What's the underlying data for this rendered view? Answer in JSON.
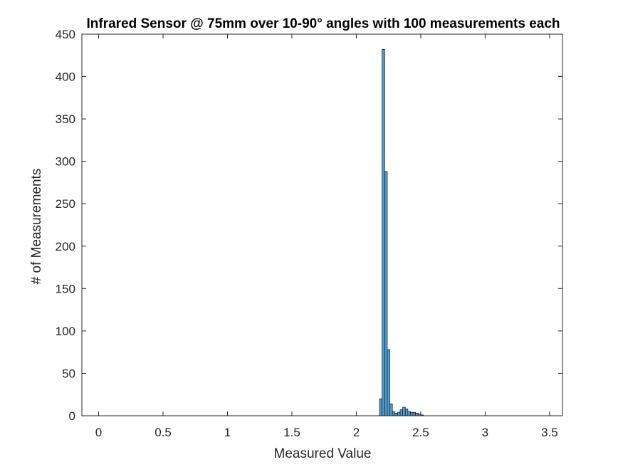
{
  "chart_data": {
    "type": "bar",
    "title": "Infrared Sensor @ 75mm over 10-90° angles with 100 measurements each",
    "xlabel": "Measured Value",
    "ylabel": "# of Measurements",
    "xlim": [
      -0.13,
      3.6
    ],
    "ylim": [
      0,
      450
    ],
    "xticks": [
      0,
      0.5,
      1,
      1.5,
      2,
      2.5,
      3,
      3.5
    ],
    "yticks": [
      0,
      50,
      100,
      150,
      200,
      250,
      300,
      350,
      400,
      450
    ],
    "grid": false,
    "bin_range": [
      0,
      3.5
    ],
    "bin_width": 0.02,
    "bins": [
      {
        "x": 2.18,
        "count": 20
      },
      {
        "x": 2.2,
        "count": 432
      },
      {
        "x": 2.22,
        "count": 288
      },
      {
        "x": 2.24,
        "count": 78
      },
      {
        "x": 2.26,
        "count": 14
      },
      {
        "x": 2.28,
        "count": 5
      },
      {
        "x": 2.3,
        "count": 3
      },
      {
        "x": 2.32,
        "count": 4
      },
      {
        "x": 2.34,
        "count": 7
      },
      {
        "x": 2.36,
        "count": 10
      },
      {
        "x": 2.38,
        "count": 8
      },
      {
        "x": 2.4,
        "count": 5
      },
      {
        "x": 2.42,
        "count": 4
      },
      {
        "x": 2.44,
        "count": 4
      },
      {
        "x": 2.46,
        "count": 3
      },
      {
        "x": 2.48,
        "count": 2
      },
      {
        "x": 2.5,
        "count": 1
      }
    ]
  }
}
